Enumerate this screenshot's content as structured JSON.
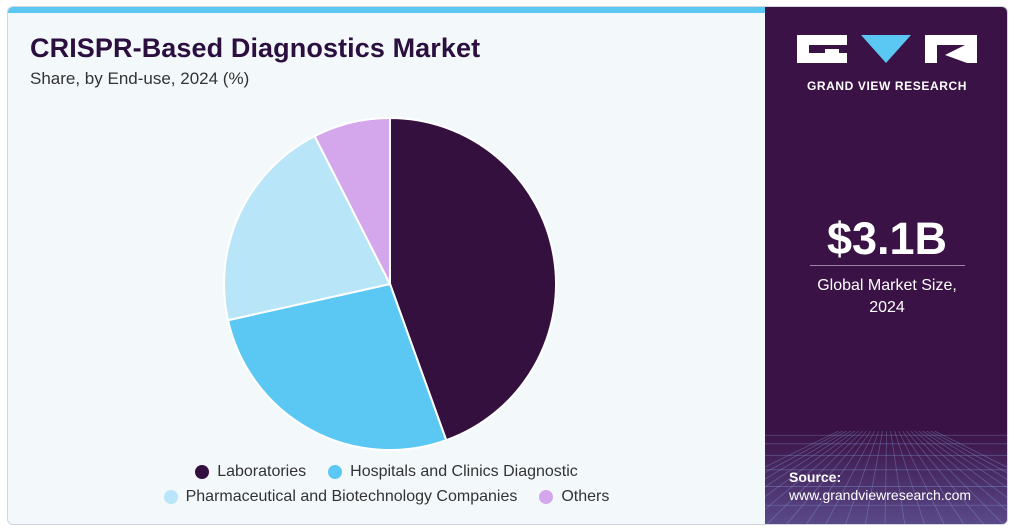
{
  "header": {
    "title": "CRISPR-Based Diagnostics Market",
    "subtitle": "Share, by End-use, 2024 (%)"
  },
  "sidebar": {
    "brand": "GRAND VIEW RESEARCH",
    "market_size": "$3.1B",
    "market_size_label_line1": "Global Market Size,",
    "market_size_label_line2": "2024",
    "source_label": "Source:",
    "source_url": "www.grandviewresearch.com"
  },
  "colors": {
    "accent": "#5bc8f3",
    "sidebar_bg": "#3b1245",
    "title": "#2b0f3f"
  },
  "chart_data": {
    "type": "pie",
    "categories": [
      "Laboratories",
      "Hospitals and Clinics Diagnostic",
      "Pharmaceutical and Biotechnology Companies",
      "Others"
    ],
    "values": [
      44.5,
      27.0,
      21.0,
      7.5
    ],
    "colors": [
      "#34103f",
      "#5bc8f3",
      "#b8e6f8",
      "#d4a7ec"
    ],
    "legend_placement": "bottom"
  }
}
